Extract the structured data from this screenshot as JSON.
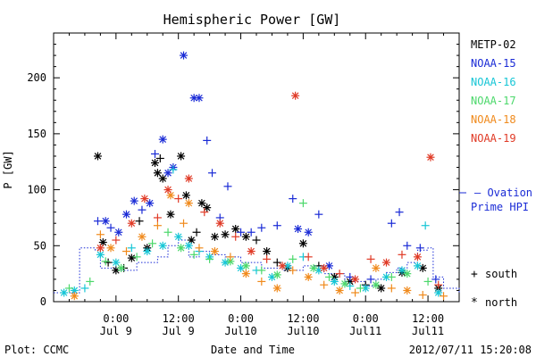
{
  "chart_data": {
    "type": "scatter",
    "title": "Hemispheric Power [GW]",
    "xlabel": "Date and Time",
    "ylabel": "P [GW]",
    "x_unit": "hours from 2012-07-08 12:00 UT",
    "xlim": [
      0,
      78
    ],
    "ylim": [
      0,
      240
    ],
    "yticks": [
      0,
      50,
      100,
      150,
      200
    ],
    "xticks": [
      {
        "x": 12,
        "time": "0:00",
        "date": "Jul 9"
      },
      {
        "x": 24,
        "time": "12:00",
        "date": "Jul 9"
      },
      {
        "x": 36,
        "time": "0:00",
        "date": "Jul10"
      },
      {
        "x": 48,
        "time": "12:00",
        "date": "Jul10"
      },
      {
        "x": 60,
        "time": "0:00",
        "date": "Jul11"
      },
      {
        "x": 72,
        "time": "12:00",
        "date": "Jul11"
      }
    ],
    "legend_position": "right",
    "series": [
      {
        "name": "METP-02",
        "color": "#000000",
        "points": [
          {
            "x": 8.5,
            "y": 130,
            "m": "north"
          },
          {
            "x": 9.5,
            "y": 53,
            "m": "north"
          },
          {
            "x": 10.5,
            "y": 35,
            "m": "south"
          },
          {
            "x": 12,
            "y": 28,
            "m": "north"
          },
          {
            "x": 13.5,
            "y": 30,
            "m": "south"
          },
          {
            "x": 15,
            "y": 39,
            "m": "north"
          },
          {
            "x": 16.5,
            "y": 72,
            "m": "south"
          },
          {
            "x": 18,
            "y": 48,
            "m": "north"
          },
          {
            "x": 19.5,
            "y": 124,
            "m": "north"
          },
          {
            "x": 20,
            "y": 115,
            "m": "north"
          },
          {
            "x": 20.5,
            "y": 128,
            "m": "south"
          },
          {
            "x": 21,
            "y": 110,
            "m": "north"
          },
          {
            "x": 22.5,
            "y": 78,
            "m": "north"
          },
          {
            "x": 24.5,
            "y": 130,
            "m": "north"
          },
          {
            "x": 25.5,
            "y": 95,
            "m": "north"
          },
          {
            "x": 26.5,
            "y": 55,
            "m": "north"
          },
          {
            "x": 27.5,
            "y": 62,
            "m": "south"
          },
          {
            "x": 28.5,
            "y": 88,
            "m": "north"
          },
          {
            "x": 29.5,
            "y": 84,
            "m": "north"
          },
          {
            "x": 31,
            "y": 58,
            "m": "north"
          },
          {
            "x": 33,
            "y": 60,
            "m": "north"
          },
          {
            "x": 35,
            "y": 65,
            "m": "north"
          },
          {
            "x": 37,
            "y": 58,
            "m": "north"
          },
          {
            "x": 39,
            "y": 55,
            "m": "south"
          },
          {
            "x": 41,
            "y": 45,
            "m": "north"
          },
          {
            "x": 43,
            "y": 35,
            "m": "south"
          },
          {
            "x": 45,
            "y": 30,
            "m": "north"
          },
          {
            "x": 48,
            "y": 52,
            "m": "north"
          },
          {
            "x": 51,
            "y": 32,
            "m": "south"
          },
          {
            "x": 54,
            "y": 22,
            "m": "north"
          },
          {
            "x": 57,
            "y": 18,
            "m": "north"
          },
          {
            "x": 60,
            "y": 15,
            "m": "south"
          },
          {
            "x": 63,
            "y": 12,
            "m": "north"
          },
          {
            "x": 67,
            "y": 26,
            "m": "north"
          },
          {
            "x": 71,
            "y": 30,
            "m": "north"
          },
          {
            "x": 74,
            "y": 12,
            "m": "north"
          }
        ]
      },
      {
        "name": "NOAA-15",
        "color": "#1a2bd6",
        "points": [
          {
            "x": 8.5,
            "y": 72,
            "m": "south"
          },
          {
            "x": 10,
            "y": 72,
            "m": "north"
          },
          {
            "x": 11,
            "y": 66,
            "m": "south"
          },
          {
            "x": 12.5,
            "y": 62,
            "m": "north"
          },
          {
            "x": 14,
            "y": 78,
            "m": "north"
          },
          {
            "x": 15.5,
            "y": 90,
            "m": "north"
          },
          {
            "x": 17,
            "y": 82,
            "m": "south"
          },
          {
            "x": 18.5,
            "y": 88,
            "m": "north"
          },
          {
            "x": 19.5,
            "y": 132,
            "m": "south"
          },
          {
            "x": 21,
            "y": 145,
            "m": "north"
          },
          {
            "x": 22,
            "y": 115,
            "m": "north"
          },
          {
            "x": 23,
            "y": 120,
            "m": "north"
          },
          {
            "x": 25,
            "y": 220,
            "m": "north"
          },
          {
            "x": 27,
            "y": 182,
            "m": "north"
          },
          {
            "x": 28,
            "y": 182,
            "m": "north"
          },
          {
            "x": 29.5,
            "y": 144,
            "m": "south"
          },
          {
            "x": 30.5,
            "y": 115,
            "m": "south"
          },
          {
            "x": 32,
            "y": 75,
            "m": "south"
          },
          {
            "x": 33.5,
            "y": 103,
            "m": "south"
          },
          {
            "x": 36,
            "y": 62,
            "m": "south"
          },
          {
            "x": 38,
            "y": 62,
            "m": "south"
          },
          {
            "x": 40,
            "y": 66,
            "m": "south"
          },
          {
            "x": 43,
            "y": 68,
            "m": "south"
          },
          {
            "x": 46,
            "y": 92,
            "m": "south"
          },
          {
            "x": 47,
            "y": 65,
            "m": "north"
          },
          {
            "x": 49,
            "y": 62,
            "m": "north"
          },
          {
            "x": 51,
            "y": 78,
            "m": "south"
          },
          {
            "x": 53,
            "y": 32,
            "m": "north"
          },
          {
            "x": 57,
            "y": 22,
            "m": "south"
          },
          {
            "x": 61,
            "y": 20,
            "m": "south"
          },
          {
            "x": 65,
            "y": 70,
            "m": "south"
          },
          {
            "x": 66.5,
            "y": 80,
            "m": "south"
          },
          {
            "x": 68,
            "y": 50,
            "m": "south"
          },
          {
            "x": 70.5,
            "y": 48,
            "m": "south"
          },
          {
            "x": 73.5,
            "y": 20,
            "m": "south"
          }
        ]
      },
      {
        "name": "NOAA-16",
        "color": "#17c6d6",
        "points": [
          {
            "x": 2,
            "y": 8,
            "m": "north"
          },
          {
            "x": 4,
            "y": 10,
            "m": "north"
          },
          {
            "x": 6,
            "y": 12,
            "m": "south"
          },
          {
            "x": 9,
            "y": 42,
            "m": "north"
          },
          {
            "x": 12,
            "y": 35,
            "m": "north"
          },
          {
            "x": 15,
            "y": 48,
            "m": "south"
          },
          {
            "x": 18,
            "y": 45,
            "m": "north"
          },
          {
            "x": 21,
            "y": 50,
            "m": "north"
          },
          {
            "x": 23,
            "y": 118,
            "m": "south"
          },
          {
            "x": 24,
            "y": 58,
            "m": "north"
          },
          {
            "x": 26,
            "y": 50,
            "m": "north"
          },
          {
            "x": 28,
            "y": 45,
            "m": "south"
          },
          {
            "x": 30,
            "y": 40,
            "m": "north"
          },
          {
            "x": 33,
            "y": 35,
            "m": "north"
          },
          {
            "x": 36,
            "y": 30,
            "m": "north"
          },
          {
            "x": 39,
            "y": 28,
            "m": "south"
          },
          {
            "x": 42,
            "y": 22,
            "m": "north"
          },
          {
            "x": 45,
            "y": 32,
            "m": "north"
          },
          {
            "x": 48,
            "y": 40,
            "m": "south"
          },
          {
            "x": 51,
            "y": 28,
            "m": "north"
          },
          {
            "x": 54,
            "y": 18,
            "m": "north"
          },
          {
            "x": 57,
            "y": 14,
            "m": "south"
          },
          {
            "x": 60,
            "y": 12,
            "m": "north"
          },
          {
            "x": 64,
            "y": 22,
            "m": "north"
          },
          {
            "x": 67,
            "y": 28,
            "m": "north"
          },
          {
            "x": 70,
            "y": 32,
            "m": "north"
          },
          {
            "x": 71.5,
            "y": 68,
            "m": "south"
          },
          {
            "x": 74,
            "y": 8,
            "m": "north"
          }
        ]
      },
      {
        "name": "NOAA-17",
        "color": "#4cd86b",
        "points": [
          {
            "x": 3,
            "y": 12,
            "m": "south"
          },
          {
            "x": 7,
            "y": 18,
            "m": "south"
          },
          {
            "x": 10,
            "y": 36,
            "m": "south"
          },
          {
            "x": 13,
            "y": 30,
            "m": "north"
          },
          {
            "x": 16,
            "y": 40,
            "m": "south"
          },
          {
            "x": 19,
            "y": 52,
            "m": "south"
          },
          {
            "x": 22,
            "y": 62,
            "m": "south"
          },
          {
            "x": 24.5,
            "y": 48,
            "m": "north"
          },
          {
            "x": 27,
            "y": 42,
            "m": "south"
          },
          {
            "x": 30,
            "y": 38,
            "m": "south"
          },
          {
            "x": 34,
            "y": 36,
            "m": "north"
          },
          {
            "x": 37,
            "y": 32,
            "m": "north"
          },
          {
            "x": 40,
            "y": 28,
            "m": "south"
          },
          {
            "x": 43,
            "y": 24,
            "m": "north"
          },
          {
            "x": 46,
            "y": 38,
            "m": "south"
          },
          {
            "x": 48,
            "y": 88,
            "m": "south"
          },
          {
            "x": 50,
            "y": 30,
            "m": "north"
          },
          {
            "x": 53,
            "y": 22,
            "m": "south"
          },
          {
            "x": 56,
            "y": 16,
            "m": "north"
          },
          {
            "x": 59,
            "y": 12,
            "m": "south"
          },
          {
            "x": 62,
            "y": 15,
            "m": "north"
          },
          {
            "x": 65,
            "y": 22,
            "m": "south"
          },
          {
            "x": 68,
            "y": 25,
            "m": "north"
          },
          {
            "x": 72,
            "y": 18,
            "m": "south"
          }
        ]
      },
      {
        "name": "NOAA-18",
        "color": "#f08a1c",
        "points": [
          {
            "x": 4,
            "y": 5,
            "m": "north"
          },
          {
            "x": 9,
            "y": 60,
            "m": "south"
          },
          {
            "x": 11,
            "y": 48,
            "m": "north"
          },
          {
            "x": 14,
            "y": 45,
            "m": "south"
          },
          {
            "x": 17,
            "y": 58,
            "m": "north"
          },
          {
            "x": 20,
            "y": 68,
            "m": "south"
          },
          {
            "x": 22.5,
            "y": 95,
            "m": "north"
          },
          {
            "x": 25,
            "y": 70,
            "m": "south"
          },
          {
            "x": 26,
            "y": 88,
            "m": "north"
          },
          {
            "x": 28,
            "y": 48,
            "m": "south"
          },
          {
            "x": 31,
            "y": 45,
            "m": "north"
          },
          {
            "x": 34,
            "y": 40,
            "m": "south"
          },
          {
            "x": 37,
            "y": 25,
            "m": "north"
          },
          {
            "x": 40,
            "y": 18,
            "m": "south"
          },
          {
            "x": 43,
            "y": 12,
            "m": "north"
          },
          {
            "x": 46,
            "y": 28,
            "m": "south"
          },
          {
            "x": 49,
            "y": 22,
            "m": "north"
          },
          {
            "x": 52,
            "y": 15,
            "m": "south"
          },
          {
            "x": 55,
            "y": 10,
            "m": "north"
          },
          {
            "x": 58,
            "y": 8,
            "m": "south"
          },
          {
            "x": 62,
            "y": 30,
            "m": "north"
          },
          {
            "x": 65,
            "y": 12,
            "m": "south"
          },
          {
            "x": 68,
            "y": 10,
            "m": "north"
          },
          {
            "x": 71,
            "y": 6,
            "m": "south"
          },
          {
            "x": 75,
            "y": 5,
            "m": "south"
          }
        ]
      },
      {
        "name": "NOAA-19",
        "color": "#e03a26",
        "points": [
          {
            "x": 9,
            "y": 48,
            "m": "north"
          },
          {
            "x": 12,
            "y": 55,
            "m": "south"
          },
          {
            "x": 15,
            "y": 70,
            "m": "north"
          },
          {
            "x": 17.5,
            "y": 92,
            "m": "north"
          },
          {
            "x": 20,
            "y": 75,
            "m": "south"
          },
          {
            "x": 22,
            "y": 100,
            "m": "north"
          },
          {
            "x": 24,
            "y": 92,
            "m": "south"
          },
          {
            "x": 26,
            "y": 110,
            "m": "north"
          },
          {
            "x": 29,
            "y": 80,
            "m": "south"
          },
          {
            "x": 32,
            "y": 70,
            "m": "north"
          },
          {
            "x": 35,
            "y": 58,
            "m": "south"
          },
          {
            "x": 38,
            "y": 45,
            "m": "north"
          },
          {
            "x": 41,
            "y": 38,
            "m": "south"
          },
          {
            "x": 44,
            "y": 32,
            "m": "north"
          },
          {
            "x": 46.5,
            "y": 184,
            "m": "north"
          },
          {
            "x": 49,
            "y": 40,
            "m": "south"
          },
          {
            "x": 52,
            "y": 30,
            "m": "north"
          },
          {
            "x": 55,
            "y": 25,
            "m": "south"
          },
          {
            "x": 58,
            "y": 20,
            "m": "north"
          },
          {
            "x": 61,
            "y": 38,
            "m": "south"
          },
          {
            "x": 64,
            "y": 35,
            "m": "north"
          },
          {
            "x": 67,
            "y": 42,
            "m": "south"
          },
          {
            "x": 70,
            "y": 40,
            "m": "north"
          },
          {
            "x": 72.5,
            "y": 129,
            "m": "north"
          },
          {
            "x": 74,
            "y": 15,
            "m": "south"
          }
        ]
      }
    ],
    "ovation": {
      "name": "Ovation Prime HPI",
      "color": "#1a2bd6",
      "x": [
        0,
        4,
        5,
        8,
        9,
        12,
        16,
        20,
        22,
        24,
        26,
        28,
        30,
        33,
        36,
        40,
        44,
        48,
        52,
        56,
        60,
        62,
        64,
        66,
        68,
        70,
        72,
        73,
        75,
        78
      ],
      "y": [
        8,
        8,
        48,
        46,
        30,
        28,
        35,
        40,
        50,
        55,
        40,
        45,
        42,
        40,
        35,
        30,
        28,
        32,
        25,
        18,
        14,
        20,
        26,
        30,
        35,
        46,
        48,
        22,
        12,
        8
      ]
    },
    "marker_legend": {
      "south": "south",
      "north": "north"
    }
  },
  "footer": {
    "left": "Plot: CCMC",
    "right": "2012/07/11 15:20:08"
  },
  "legend": {
    "ovation_label": "— Ovation",
    "ovation_label2": "Prime HPI"
  },
  "symbols": {
    "south": "+",
    "north": "*"
  }
}
